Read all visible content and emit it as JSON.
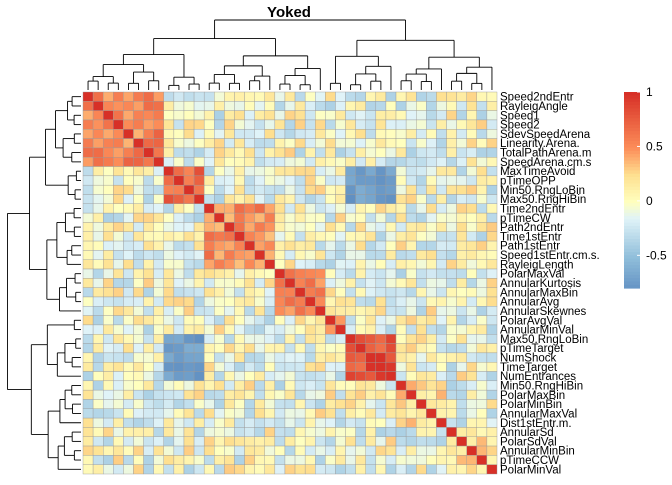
{
  "chart_data": {
    "type": "heatmap",
    "title": "Yoked",
    "variables": [
      "Speed2ndEntr",
      "RayleigAngle",
      "Speed1",
      "Speed2",
      "SdevSpeedArena",
      "Linearity.Arena.",
      "TotalPathArena.m",
      "SpeedArena.cm.s",
      "MaxTimeAvoid",
      "pTimeOPP",
      "Min50.RngLoBin",
      "Max50.RngHiBin",
      "Time2ndEntr",
      "pTimeCW",
      "Path2ndEntr",
      "Time1stEntr",
      "Path1stEntr",
      "Speed1stEntr.cm.s.",
      "RayleigLength",
      "PolarMaxVal",
      "AnnularKurtosis",
      "AnnularMaxBin",
      "AnnularAvg",
      "AnnularSkewnes",
      "PolarAvgVal",
      "AnnularMinVal",
      "Max50.RngLoBin",
      "pTimeTarget",
      "NumShock",
      "TimeTarget",
      "NumEntrances",
      "Min50.RngHiBin",
      "PolarMaxBin",
      "PolarMinBin",
      "AnnularMaxVal",
      "Dist1stEntr.m.",
      "AnnularSd",
      "PolarSdVal",
      "AnnularMinBin",
      "pTimeCCW",
      "PolarMinVal"
    ],
    "clusters": [
      {
        "start": 0,
        "end": 7,
        "within": 0.55
      },
      {
        "start": 8,
        "end": 11,
        "within": 0.72
      },
      {
        "start": 12,
        "end": 18,
        "within": 0.52
      },
      {
        "start": 19,
        "end": 23,
        "within": 0.58
      },
      {
        "start": 24,
        "end": 25,
        "within": 0.3
      },
      {
        "start": 26,
        "end": 30,
        "within": 0.82
      },
      {
        "start": 31,
        "end": 35,
        "within": 0.25
      },
      {
        "start": 36,
        "end": 40,
        "within": 0.22
      }
    ],
    "strong_negative_blocks": [
      {
        "rows": [
          8,
          11
        ],
        "cols": [
          26,
          30
        ],
        "value": -0.72
      }
    ],
    "legend": {
      "ticks": [
        1,
        0.5,
        0,
        -0.5
      ],
      "colors": [
        "#D73027",
        "#FC8D59",
        "#FEE090",
        "#FFFFBF",
        "#E0F3F8",
        "#91BFDB",
        "#4575B4"
      ]
    },
    "scale": [
      -0.8,
      1
    ],
    "dendrogram": "rows and columns clustered",
    "legend_position": "right"
  }
}
